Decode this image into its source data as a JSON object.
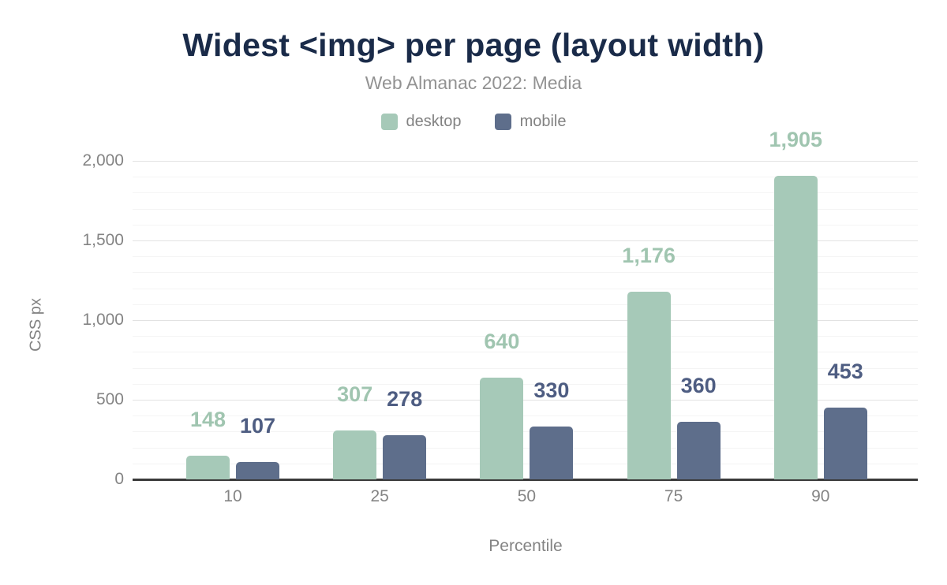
{
  "header": {
    "title": "Widest <img> per page (layout width)",
    "subtitle": "Web Almanac 2022: Media"
  },
  "legend": [
    {
      "name": "desktop",
      "label": "desktop",
      "color": "#a6c9b8"
    },
    {
      "name": "mobile",
      "label": "mobile",
      "color": "#5e6e8b"
    }
  ],
  "axes": {
    "x_title": "Percentile",
    "y_title": "CSS px"
  },
  "colors": {
    "title": "#1a2b49",
    "subtitle": "#929292",
    "tick_text": "#848484",
    "axis_line": "#3a3a3a",
    "major_grid": "#e2e2e2",
    "minor_grid": "#f4f4f4"
  },
  "chart_data": {
    "type": "bar",
    "title": "Widest <img> per page (layout width)",
    "subtitle": "Web Almanac 2022: Media",
    "xlabel": "Percentile",
    "ylabel": "CSS px",
    "categories": [
      "10",
      "25",
      "50",
      "75",
      "90"
    ],
    "series": [
      {
        "name": "desktop",
        "color": "#a6c9b8",
        "label_color": "#a0c5b0",
        "values": [
          148,
          307,
          640,
          1176,
          1905
        ],
        "labels": [
          "148",
          "307",
          "640",
          "1,176",
          "1,905"
        ]
      },
      {
        "name": "mobile",
        "color": "#5e6e8b",
        "label_color": "#4e5d82",
        "values": [
          107,
          278,
          330,
          360,
          453
        ],
        "labels": [
          "107",
          "278",
          "330",
          "360",
          "453"
        ]
      }
    ],
    "ylim": [
      0,
      2000
    ],
    "yticks": [
      0,
      500,
      1000,
      1500,
      2000
    ],
    "ytick_labels": [
      "0",
      "500",
      "1,000",
      "1,500",
      "2,000"
    ],
    "grid": {
      "major_step": 500,
      "minor_step": 100,
      "minor_visible": true
    },
    "legend_position": "top-center",
    "data_labels": "above-bars"
  }
}
